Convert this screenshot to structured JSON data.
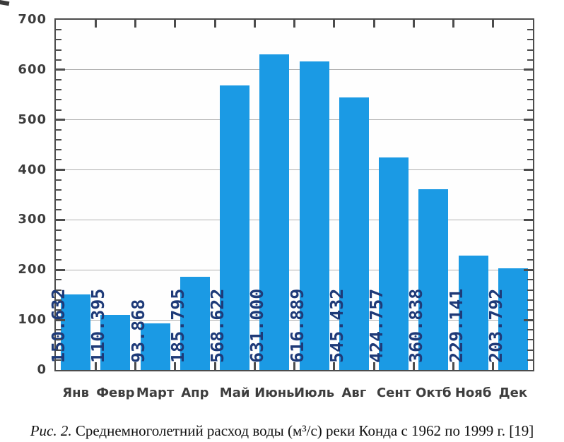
{
  "figure": {
    "caption_prefix": "Рис. 2.",
    "caption_rest": " Среднемноголетний расход воды (м³/с) реки Конда с 1962 по 1999 г. [19]"
  },
  "chart_data": {
    "type": "bar",
    "title": "",
    "xlabel": "",
    "ylabel": "",
    "categories": [
      "Янв",
      "Февр",
      "Март",
      "Апр",
      "Май",
      "Июнь",
      "Июль",
      "Авг",
      "Сент",
      "Октб",
      "Нояб",
      "Дек"
    ],
    "values": [
      150.632,
      110.395,
      93.868,
      185.795,
      568.622,
      631.0,
      616.889,
      545.432,
      424.757,
      360.838,
      229.141,
      203.792
    ],
    "bar_value_labels": [
      "150.632",
      "110.395",
      "93.868",
      "185.795",
      "568.622",
      "631.000",
      "616.889",
      "545.432",
      "424.757",
      "360.838",
      "229.141",
      "203.792"
    ],
    "ylim": [
      0,
      700
    ],
    "yticks": [
      0,
      100,
      200,
      300,
      400,
      500,
      600,
      700
    ],
    "ytick_interval": 100,
    "minor_tick_interval": 20,
    "grid": "horizontal",
    "legend": "none",
    "colors": {
      "bar": "#1b9ae4",
      "bar_label": "#1e3a78",
      "axis": "#4c4c4c",
      "grid": "#b0b0b0",
      "tick_label": "#3d3d3d"
    }
  }
}
